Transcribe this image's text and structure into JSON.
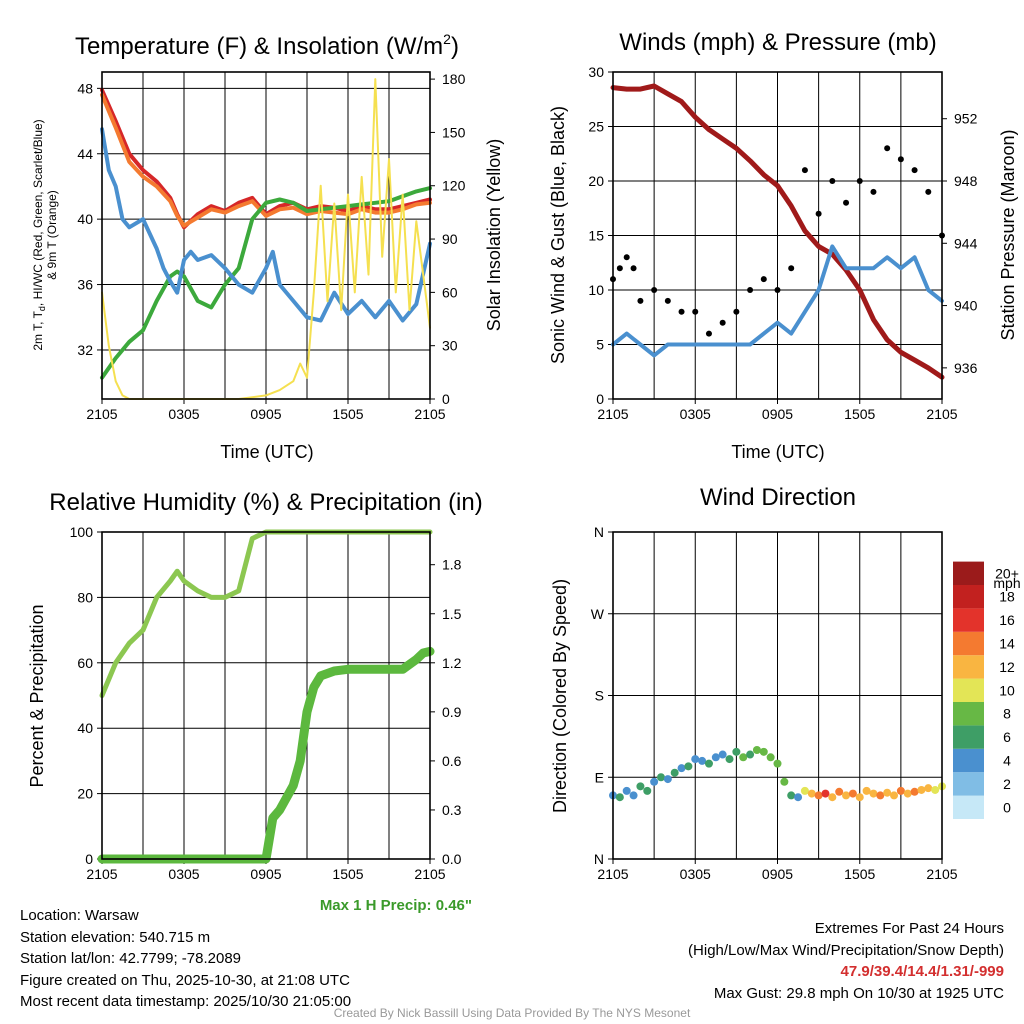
{
  "chart_data": [
    {
      "type": "line",
      "title_main": "Temperature (F) & Insolation (W/m",
      "title_sup": "2",
      "title_end": ")",
      "xlabel": "Time (UTC)",
      "ylabel_lines": [
        "2m T, T",
        "d",
        ", HI/WC (Red, Green, Scarlet/Blue)",
        "& 9m T (Orange)"
      ],
      "ylabel_right": "Solar Insolation (Yellow)",
      "x_ticks": [
        "2105",
        "0305",
        "0905",
        "1505",
        "2105"
      ],
      "xlim_hours": [
        0,
        24
      ],
      "ylim": [
        29,
        49
      ],
      "y_ticks": [
        32,
        36,
        40,
        44,
        48
      ],
      "ylim_right": [
        0,
        184
      ],
      "y_ticks_right": [
        0,
        30,
        60,
        90,
        120,
        150,
        180
      ],
      "series": [
        {
          "name": "2m T",
          "color": "#d62728",
          "x": [
            0,
            1,
            2,
            3,
            4,
            5,
            5.5,
            6,
            7,
            8,
            9,
            10,
            11,
            12,
            13,
            14,
            15,
            16,
            17,
            18,
            19,
            20,
            21,
            22,
            23,
            24
          ],
          "values": [
            47.9,
            46.0,
            44.0,
            43.0,
            42.3,
            41.3,
            40.3,
            39.5,
            40.3,
            40.8,
            40.5,
            41.0,
            41.3,
            40.3,
            40.8,
            41.0,
            40.6,
            40.8,
            40.7,
            40.5,
            40.8,
            40.6,
            40.6,
            40.8,
            41.0,
            41.2
          ]
        },
        {
          "name": "9m T",
          "color": "#f47a30",
          "x": [
            0,
            1,
            2,
            3,
            4,
            5,
            5.5,
            6,
            7,
            8,
            9,
            10,
            11,
            12,
            13,
            14,
            15,
            16,
            17,
            18,
            19,
            20,
            21,
            22,
            23,
            24
          ],
          "values": [
            47.6,
            45.6,
            43.5,
            42.6,
            42.0,
            41.1,
            40.2,
            39.6,
            40.1,
            40.6,
            40.4,
            40.8,
            41.1,
            40.2,
            40.6,
            40.7,
            40.3,
            40.5,
            40.4,
            40.3,
            40.6,
            40.4,
            40.4,
            40.6,
            40.9,
            41.0
          ]
        },
        {
          "name": "Td",
          "color": "#3ca93c",
          "x": [
            0,
            1,
            2,
            3,
            4,
            5,
            5.5,
            6,
            7,
            8,
            9,
            10,
            11,
            12,
            13,
            14,
            15,
            16,
            17,
            18,
            19,
            20,
            21,
            22,
            23,
            24
          ],
          "values": [
            30.3,
            31.5,
            32.5,
            33.2,
            35.0,
            36.5,
            36.8,
            36.5,
            35.0,
            34.6,
            36.0,
            37.0,
            40.0,
            41.0,
            41.2,
            41.0,
            40.5,
            40.6,
            40.7,
            40.8,
            40.9,
            41.0,
            41.1,
            41.4,
            41.7,
            41.9
          ]
        },
        {
          "name": "HI/WC",
          "color": "#4a90cf",
          "x": [
            0,
            0.5,
            1,
            1.5,
            2,
            3,
            4,
            4.5,
            5,
            5.5,
            6,
            6.5,
            7,
            8,
            9,
            10,
            11,
            12,
            12.5,
            13,
            14,
            15,
            16,
            17,
            18,
            19,
            20,
            21,
            22,
            23,
            24
          ],
          "values": [
            45.5,
            43.0,
            42.0,
            40.0,
            39.5,
            40.0,
            38.2,
            37.0,
            36.2,
            35.5,
            37.5,
            38.0,
            37.5,
            37.8,
            37.0,
            36.0,
            35.5,
            37.0,
            38.0,
            36.0,
            35.0,
            34.0,
            33.8,
            35.5,
            34.2,
            35.0,
            34.0,
            35.0,
            33.8,
            34.8,
            38.5
          ]
        },
        {
          "name": "Solar Insolation",
          "color": "#f5e050",
          "axis": "right",
          "x": [
            0,
            0.5,
            1,
            1.5,
            2,
            4,
            6,
            8,
            10,
            12,
            13,
            14,
            14.5,
            15,
            15.5,
            16,
            16.5,
            17,
            17.5,
            18,
            18.5,
            19,
            19.5,
            20,
            20.5,
            21,
            21.5,
            22,
            22.5,
            23,
            23.5,
            24
          ],
          "values": [
            60,
            30,
            10,
            2,
            0,
            0,
            0,
            0,
            0,
            2,
            5,
            10,
            20,
            12,
            60,
            120,
            55,
            110,
            50,
            115,
            60,
            125,
            70,
            180,
            80,
            135,
            60,
            115,
            50,
            100,
            70,
            40
          ]
        }
      ]
    },
    {
      "type": "line",
      "title": "Winds (mph) & Pressure (mb)",
      "xlabel": "Time (UTC)",
      "ylabel": "Sonic Wind & Gust (Blue, Black)",
      "ylabel_right": "Station Pressure (Maroon)",
      "x_ticks": [
        "2105",
        "0305",
        "0905",
        "1505",
        "2105"
      ],
      "xlim_hours": [
        0,
        24
      ],
      "ylim": [
        0,
        30
      ],
      "y_ticks": [
        0,
        5,
        10,
        15,
        20,
        25,
        30
      ],
      "ylim_right": [
        934.0,
        955.0
      ],
      "y_ticks_right": [
        936,
        940,
        944,
        948,
        952
      ],
      "series": [
        {
          "name": "Pressure",
          "color": "#a01a1a",
          "axis": "right",
          "x": [
            0,
            1,
            2,
            3,
            4,
            5,
            6,
            7,
            8,
            9,
            10,
            11,
            12,
            13,
            14,
            15,
            16,
            17,
            18,
            19,
            20,
            21,
            22,
            23,
            24
          ],
          "values": [
            954.0,
            953.9,
            953.9,
            954.1,
            953.6,
            953.1,
            952.1,
            951.3,
            950.7,
            950.1,
            949.3,
            948.4,
            947.7,
            946.4,
            944.8,
            943.8,
            943.3,
            942.3,
            941.0,
            939.1,
            937.8,
            937.0,
            936.5,
            936.0,
            935.4
          ]
        },
        {
          "name": "Sonic Wind",
          "color": "#4a90cf",
          "x": [
            0,
            1,
            2,
            3,
            4,
            5,
            6,
            7,
            8,
            9,
            10,
            11,
            12,
            13,
            14,
            15,
            16,
            17,
            18,
            19,
            20,
            21,
            22,
            23,
            24
          ],
          "values": [
            5,
            6,
            5,
            4,
            5,
            5,
            5,
            5,
            5,
            5,
            5,
            6,
            7,
            6,
            8,
            10,
            14,
            12,
            12,
            12,
            13,
            12,
            13,
            10,
            9
          ]
        },
        {
          "name": "Gust",
          "color": "#000000",
          "x": [
            0,
            0.5,
            1,
            1.5,
            2,
            3,
            4,
            5,
            6,
            7,
            8,
            9,
            10,
            11,
            12,
            13,
            14,
            15,
            16,
            17,
            18,
            19,
            20,
            21,
            22,
            23,
            24
          ],
          "values": [
            11,
            12,
            13,
            12,
            9,
            10,
            9,
            8,
            8,
            6,
            7,
            8,
            10,
            11,
            10,
            12,
            21,
            17,
            20,
            18,
            20,
            19,
            23,
            22,
            21,
            19,
            15
          ]
        }
      ]
    },
    {
      "type": "line",
      "title": "Relative Humidity (%) & Precipitation (in)",
      "xlabel": "",
      "ylabel": "Percent & Precipitation",
      "x_ticks": [
        "2105",
        "0305",
        "0905",
        "1505",
        "2105"
      ],
      "xlim_hours": [
        0,
        24
      ],
      "ylim": [
        0,
        100
      ],
      "y_ticks": [
        0,
        20,
        40,
        60,
        80,
        100
      ],
      "ylim_right": [
        0.0,
        2.0
      ],
      "y_ticks_right": [
        "0.0",
        "0.3",
        "0.6",
        "0.9",
        "1.2",
        "1.5",
        "1.8"
      ],
      "annotation": "Max 1 H Precip: 0.46\"",
      "series": [
        {
          "name": "Relative Humidity",
          "color": "#8cc751",
          "x": [
            0,
            1,
            2,
            3,
            4,
            5,
            5.5,
            6,
            7,
            8,
            9,
            10,
            11,
            12,
            13,
            14,
            15,
            16,
            17,
            18,
            19,
            20,
            21,
            22,
            23,
            24
          ],
          "values": [
            50,
            60,
            66,
            70,
            80,
            85,
            88,
            85,
            82,
            80,
            80,
            82,
            98,
            100,
            100,
            100,
            100,
            100,
            100,
            100,
            100,
            100,
            100,
            100,
            100,
            100
          ]
        },
        {
          "name": "Precipitation",
          "color": "#5cb83e",
          "axis": "right",
          "x": [
            0,
            6,
            10,
            12,
            12.5,
            13,
            14,
            14.5,
            15,
            15.5,
            16,
            17,
            18,
            19,
            20,
            21,
            22,
            23,
            23.5,
            24
          ],
          "values": [
            0.0,
            0.0,
            0.0,
            0.0,
            0.25,
            0.3,
            0.45,
            0.6,
            0.9,
            1.05,
            1.12,
            1.15,
            1.16,
            1.16,
            1.16,
            1.16,
            1.16,
            1.22,
            1.26,
            1.27
          ]
        }
      ]
    },
    {
      "type": "scatter",
      "title": "Wind Direction",
      "xlabel": "",
      "ylabel": "Direction (Colored By Speed)",
      "x_ticks": [
        "2105",
        "0305",
        "0905",
        "1505",
        "2105"
      ],
      "xlim_hours": [
        0,
        24
      ],
      "y_ticks": [
        "N",
        "E",
        "S",
        "W",
        "N"
      ],
      "ylim_degrees": [
        0,
        360
      ],
      "colorbar": {
        "unit": "mph",
        "labels": [
          "0",
          "2",
          "4",
          "6",
          "8",
          "10",
          "12",
          "14",
          "16",
          "18",
          "20+"
        ],
        "colors": [
          "#c6e8f7",
          "#80bde5",
          "#4a90cf",
          "#3e9e66",
          "#67b845",
          "#e3e556",
          "#f9b541",
          "#f47a30",
          "#e3332b",
          "#c2211f",
          "#9b1b1b"
        ]
      },
      "x": [
        0,
        0.5,
        1,
        1.5,
        2,
        2.5,
        3,
        3.5,
        4,
        4.5,
        5,
        5.5,
        6,
        6.5,
        7,
        7.5,
        8,
        8.5,
        9,
        9.5,
        10,
        10.5,
        11,
        11.5,
        12,
        12.5,
        13,
        13.5,
        14,
        14.5,
        15,
        15.5,
        16,
        16.5,
        17,
        17.5,
        18,
        18.5,
        19,
        19.5,
        20,
        20.5,
        21,
        21.5,
        22,
        22.5,
        23,
        23.5,
        24
      ],
      "values": [
        70,
        68,
        75,
        70,
        80,
        75,
        85,
        90,
        88,
        95,
        100,
        102,
        110,
        108,
        105,
        112,
        115,
        110,
        118,
        112,
        115,
        120,
        118,
        112,
        105,
        85,
        70,
        68,
        75,
        72,
        70,
        72,
        68,
        74,
        70,
        72,
        68,
        75,
        72,
        70,
        73,
        70,
        75,
        72,
        74,
        76,
        78,
        76,
        80
      ],
      "speeds": [
        4,
        5,
        4,
        3,
        5,
        6,
        4,
        5,
        3,
        6,
        4,
        5,
        3,
        4,
        5,
        4,
        3,
        5,
        6,
        7,
        6,
        8,
        7,
        8,
        8,
        7,
        5,
        4,
        10,
        12,
        14,
        16,
        12,
        14,
        12,
        13,
        12,
        11,
        12,
        14,
        12,
        11,
        13,
        12,
        14,
        12,
        11,
        10,
        9
      ]
    }
  ],
  "info": {
    "location": "Location: Warsaw",
    "elevation": "Station elevation: 540.715 m",
    "latlon": "Station lat/lon: 42.7799; -78.2089",
    "created": "Figure created on Thu, 2025-10-30, at 21:08 UTC",
    "recent": "Most recent data timestamp: 2025/10/30 21:05:00"
  },
  "extremes": {
    "title": "Extremes For Past 24 Hours",
    "subtitle": "(High/Low/Max Wind/Precipitation/Snow Depth)",
    "values": "47.9/39.4/14.4/1.31/-999",
    "gust": "Max Gust: 29.8 mph On 10/30 at 1925 UTC"
  },
  "credit": "Created By Nick Bassill Using Data Provided By The NYS Mesonet"
}
